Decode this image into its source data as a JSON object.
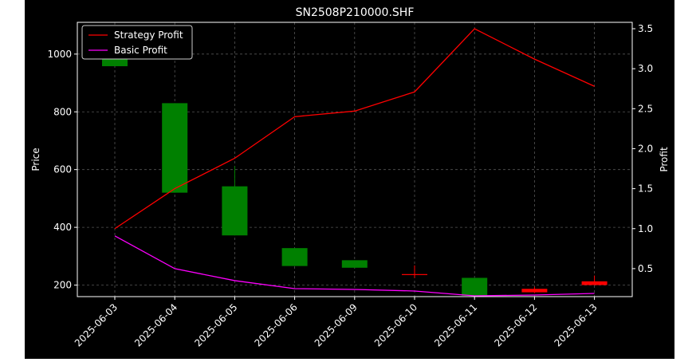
{
  "chart_data": {
    "type": "candlestick",
    "title": "SN2508P210000.SHF",
    "xlabel": "",
    "ylabel": "Price",
    "y2label": "Profit",
    "categories": [
      "2025-06-03",
      "2025-06-04",
      "2025-06-05",
      "2025-06-06",
      "2025-06-09",
      "2025-06-10",
      "2025-06-11",
      "2025-06-12",
      "2025-06-13"
    ],
    "ylim": [
      160,
      1110
    ],
    "y2lim": [
      0.15,
      3.58
    ],
    "yticks": [
      200,
      400,
      600,
      800,
      1000
    ],
    "y2ticks": [
      0.5,
      1.0,
      1.5,
      2.0,
      2.5,
      3.0,
      3.5
    ],
    "grid": true,
    "legend_position": "top-left",
    "candles": [
      {
        "open": 1000,
        "close": 958,
        "high": 1012,
        "low": 958
      },
      {
        "open": 830,
        "close": 520,
        "high": 830,
        "low": 520
      },
      {
        "open": 542,
        "close": 372,
        "high": 612,
        "low": 372
      },
      {
        "open": 328,
        "close": 266,
        "high": 328,
        "low": 266
      },
      {
        "open": 286,
        "close": 260,
        "high": 286,
        "low": 260
      },
      {
        "open": 237,
        "close": 238,
        "high": 268,
        "low": 225
      },
      {
        "open": 225,
        "close": 163,
        "high": 225,
        "low": 163
      },
      {
        "open": 175,
        "close": 187,
        "high": 194,
        "low": 172
      },
      {
        "open": 200,
        "close": 213,
        "high": 233,
        "low": 200
      }
    ],
    "series": [
      {
        "name": "Strategy Profit",
        "axis": "right",
        "color": "#ff0000",
        "values": [
          1.0,
          1.5,
          1.88,
          2.4,
          2.47,
          2.71,
          3.5,
          3.12,
          2.78
        ]
      },
      {
        "name": "Basic Profit",
        "axis": "right",
        "color": "#ff00ff",
        "values": [
          0.91,
          0.5,
          0.35,
          0.25,
          0.24,
          0.22,
          0.16,
          0.17,
          0.19
        ]
      }
    ],
    "colors": {
      "up": "#ff0000",
      "down": "#008000",
      "grid": "#555555",
      "axes": "#ffffff"
    }
  }
}
